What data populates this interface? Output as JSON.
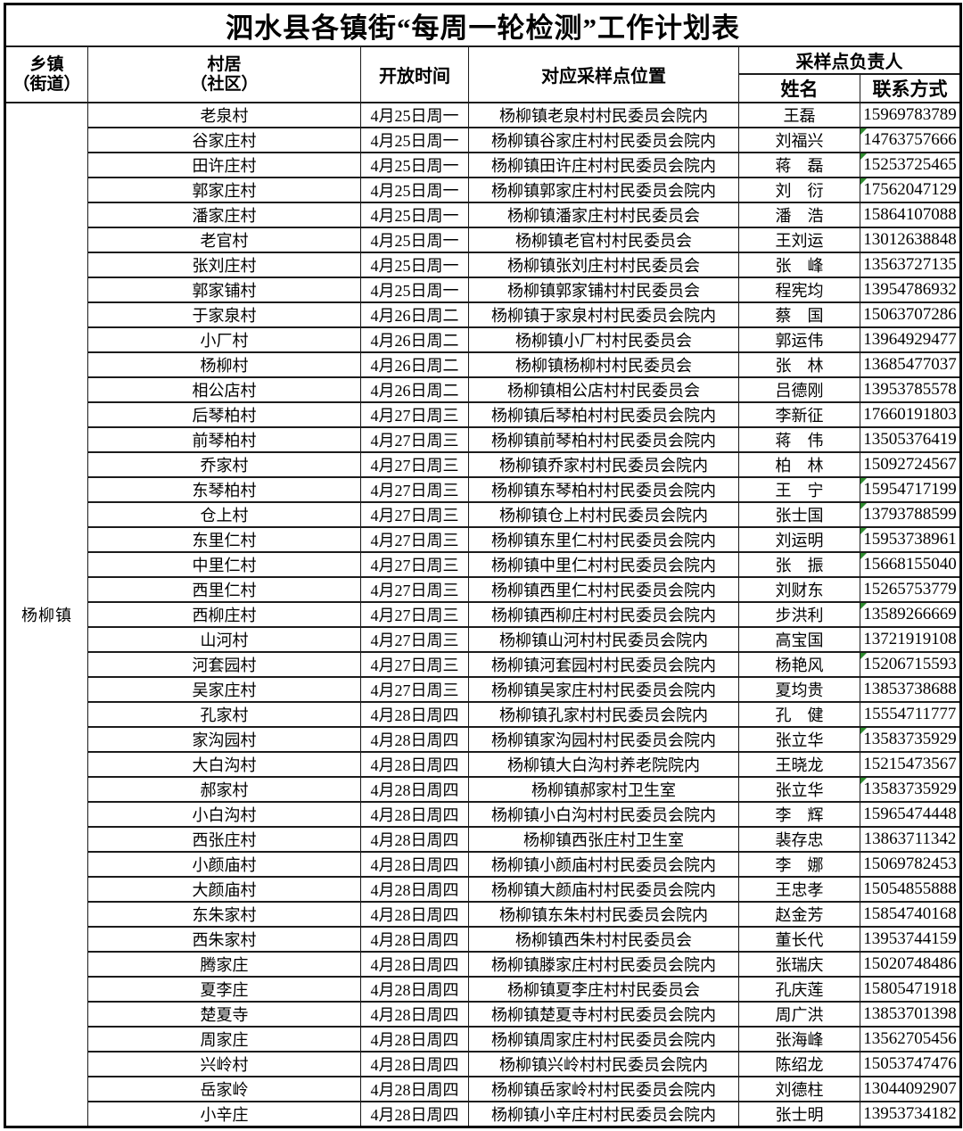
{
  "title": "泗水县各镇街“每周一轮检测”工作计划表",
  "header": {
    "township_line1": "乡镇",
    "township_line2": "（街道）",
    "village_line1": "村居",
    "village_line2": "（社区）",
    "open_time": "开放时间",
    "location": "对应采样点位置",
    "leader_group": "采样点负责人",
    "name": "姓名",
    "contact": "联系方式"
  },
  "township_label": "杨柳镇",
  "colors": {
    "border": "#000000",
    "marker_green": "#2e8b2e",
    "background": "#ffffff"
  },
  "rows": [
    {
      "village": "老泉村",
      "time": "4月25日周一",
      "location": "杨柳镇老泉村村民委员会院内",
      "name": "王磊",
      "phone": "15969783789",
      "marked": false
    },
    {
      "village": "谷家庄村",
      "time": "4月25日周一",
      "location": "杨柳镇谷家庄村村民委员会院内",
      "name": "刘福兴",
      "phone": "14763757666",
      "marked": true
    },
    {
      "village": "田许庄村",
      "time": "4月25日周一",
      "location": "杨柳镇田许庄村村民委员会院内",
      "name": "蒋　磊",
      "phone": "15253725465",
      "marked": true
    },
    {
      "village": "郭家庄村",
      "time": "4月25日周一",
      "location": "杨柳镇郭家庄村村民委员会院内",
      "name": "刘　衍",
      "phone": "17562047129",
      "marked": true
    },
    {
      "village": "潘家庄村",
      "time": "4月25日周一",
      "location": "杨柳镇潘家庄村村民委员会",
      "name": "潘　浩",
      "phone": "15864107088",
      "marked": false
    },
    {
      "village": "老官村",
      "time": "4月25日周一",
      "location": "杨柳镇老官村村民委员会",
      "name": "王刘运",
      "phone": "13012638848",
      "marked": false
    },
    {
      "village": "张刘庄村",
      "time": "4月25日周一",
      "location": "杨柳镇张刘庄村村民委员会",
      "name": "张　峰",
      "phone": "13563727135",
      "marked": false
    },
    {
      "village": "郭家铺村",
      "time": "4月25日周一",
      "location": "杨柳镇郭家铺村村民委员会",
      "name": "程宪均",
      "phone": "13954786932",
      "marked": false
    },
    {
      "village": "于家泉村",
      "time": "4月26日周二",
      "location": "杨柳镇于家泉村村民委员会院内",
      "name": "蔡　国",
      "phone": "15063707286",
      "marked": false
    },
    {
      "village": "小厂村",
      "time": "4月26日周二",
      "location": "杨柳镇小厂村村民委员会",
      "name": "郭运伟",
      "phone": "13964929477",
      "marked": false
    },
    {
      "village": "杨柳村",
      "time": "4月26日周二",
      "location": "杨柳镇杨柳村村民委员会",
      "name": "张　林",
      "phone": "13685477037",
      "marked": false
    },
    {
      "village": "相公店村",
      "time": "4月26日周二",
      "location": "杨柳镇相公店村村民委员会",
      "name": "吕德刚",
      "phone": "13953785578",
      "marked": false
    },
    {
      "village": "后琴柏村",
      "time": "4月27日周三",
      "location": "杨柳镇后琴柏村村民委员会院内",
      "name": "李新征",
      "phone": "17660191803",
      "marked": false
    },
    {
      "village": "前琴柏村",
      "time": "4月27日周三",
      "location": "杨柳镇前琴柏村村民委员会院内",
      "name": "蒋　伟",
      "phone": "13505376419",
      "marked": false
    },
    {
      "village": "乔家村",
      "time": "4月27日周三",
      "location": "杨柳镇乔家村村民委员会院内",
      "name": "柏　林",
      "phone": "15092724567",
      "marked": false
    },
    {
      "village": "东琴柏村",
      "time": "4月27日周三",
      "location": "杨柳镇东琴柏村村民委员会院内",
      "name": "王　宁",
      "phone": "15954717199",
      "marked": true
    },
    {
      "village": "仓上村",
      "time": "4月27日周三",
      "location": "杨柳镇仓上村村民委员会院内",
      "name": "张士国",
      "phone": "13793788599",
      "marked": true
    },
    {
      "village": "东里仁村",
      "time": "4月27日周三",
      "location": "杨柳镇东里仁村村民委员会院内",
      "name": "刘运明",
      "phone": "15953738961",
      "marked": true
    },
    {
      "village": "中里仁村",
      "time": "4月27日周三",
      "location": "杨柳镇中里仁村村民委员会院内",
      "name": "张　振",
      "phone": "15668155040",
      "marked": true
    },
    {
      "village": "西里仁村",
      "time": "4月27日周三",
      "location": "杨柳镇西里仁村村民委员会院内",
      "name": "刘财东",
      "phone": "15265753779",
      "marked": false
    },
    {
      "village": "西柳庄村",
      "time": "4月27日周三",
      "location": "杨柳镇西柳庄村村民委员会院内",
      "name": "步洪利",
      "phone": "13589266669",
      "marked": true
    },
    {
      "village": "山河村",
      "time": "4月27日周三",
      "location": "杨柳镇山河村村民委员会院内",
      "name": "高宝国",
      "phone": "13721919108",
      "marked": false
    },
    {
      "village": "河套园村",
      "time": "4月27日周三",
      "location": "杨柳镇河套园村村民委员会院内",
      "name": "杨艳风",
      "phone": "15206715593",
      "marked": true
    },
    {
      "village": "吴家庄村",
      "time": "4月27日周三",
      "location": "杨柳镇吴家庄村村民委员会院内",
      "name": "夏均贵",
      "phone": "13853738688",
      "marked": false
    },
    {
      "village": "孔家村",
      "time": "4月28日周四",
      "location": "杨柳镇孔家村村民委员会院内",
      "name": "孔　健",
      "phone": "15554711777",
      "marked": false
    },
    {
      "village": "家沟园村",
      "time": "4月28日周四",
      "location": "杨柳镇家沟园村村民委员会院内",
      "name": "张立华",
      "phone": "13583735929",
      "marked": true
    },
    {
      "village": "大白沟村",
      "time": "4月28日周四",
      "location": "杨柳镇大白沟村养老院院内",
      "name": "王晓龙",
      "phone": "15215473567",
      "marked": false
    },
    {
      "village": "郝家村",
      "time": "4月28日周四",
      "location": "杨柳镇郝家村卫生室",
      "name": "张立华",
      "phone": "13583735929",
      "marked": true
    },
    {
      "village": "小白沟村",
      "time": "4月28日周四",
      "location": "杨柳镇小白沟村村民委员会院内",
      "name": "李　辉",
      "phone": "15965474448",
      "marked": false
    },
    {
      "village": "西张庄村",
      "time": "4月28日周四",
      "location": "杨柳镇西张庄村卫生室",
      "name": "裴存忠",
      "phone": "13863711342",
      "marked": false
    },
    {
      "village": "小颜庙村",
      "time": "4月28日周四",
      "location": "杨柳镇小颜庙村村民委员会院内",
      "name": "李　娜",
      "phone": "15069782453",
      "marked": false
    },
    {
      "village": "大颜庙村",
      "time": "4月28日周四",
      "location": "杨柳镇大颜庙村村民委员会院内",
      "name": "王忠孝",
      "phone": "15054855888",
      "marked": false
    },
    {
      "village": "东朱家村",
      "time": "4月28日周四",
      "location": "杨柳镇东朱村村民委员会院内",
      "name": "赵金芳",
      "phone": "15854740168",
      "marked": false
    },
    {
      "village": "西朱家村",
      "time": "4月28日周四",
      "location": "杨柳镇西朱村村民委员会",
      "name": "董长代",
      "phone": "13953744159",
      "marked": false
    },
    {
      "village": "腾家庄",
      "time": "4月28日周四",
      "location": "杨柳镇滕家庄村村民委员会院内",
      "name": "张瑞庆",
      "phone": "15020748486",
      "marked": false
    },
    {
      "village": "夏李庄",
      "time": "4月28日周四",
      "location": "杨柳镇夏李庄村村民委员会",
      "name": "孔庆莲",
      "phone": "15805471918",
      "marked": false
    },
    {
      "village": "楚夏寺",
      "time": "4月28日周四",
      "location": "杨柳镇楚夏寺村村民委员会院内",
      "name": "周广洪",
      "phone": "13853701398",
      "marked": false
    },
    {
      "village": "周家庄",
      "time": "4月28日周四",
      "location": "杨柳镇周家庄村村民委员会院内",
      "name": "张海峰",
      "phone": "13562705456",
      "marked": false
    },
    {
      "village": "兴岭村",
      "time": "4月28日周四",
      "location": "杨柳镇兴岭村村民委员会院内",
      "name": "陈绍龙",
      "phone": "15053747476",
      "marked": false
    },
    {
      "village": "岳家岭",
      "time": "4月28日周四",
      "location": "杨柳镇岳家岭村村民委员会院内",
      "name": "刘德柱",
      "phone": "13044092907",
      "marked": false
    },
    {
      "village": "小辛庄",
      "time": "4月28日周四",
      "location": "杨柳镇小辛庄村村民委员会院内",
      "name": "张士明",
      "phone": "13953734182",
      "marked": false
    }
  ]
}
